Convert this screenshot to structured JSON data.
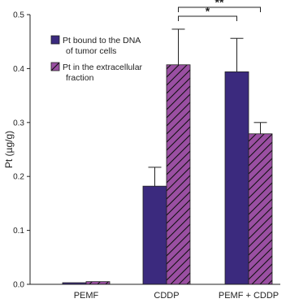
{
  "chart_data": {
    "type": "bar",
    "ylabel": "Pt (µg/g)",
    "ylim": [
      0,
      0.5
    ],
    "yticks": [
      "0.0",
      "0.1",
      "0.2",
      "0.3",
      "0.4",
      "0.5"
    ],
    "categories": [
      "PEMF",
      "CDDP",
      "PEMF + CDDP"
    ],
    "series": [
      {
        "name": "Pt bound to the DNA of tumor cells",
        "legend_lines": [
          "Pt bound to the DNA",
          "of tumor cells"
        ],
        "color": "#3b2a7e",
        "pattern": "solid",
        "values": [
          0.003,
          0.182,
          0.394
        ],
        "errors": [
          0,
          0.035,
          0.062
        ]
      },
      {
        "name": "Pt in the extracellular fraction",
        "legend_lines": [
          "Pt in the extracellular",
          "fraction"
        ],
        "color": "#9a4fa2",
        "pattern": "diagonal-hatch",
        "values": [
          0.005,
          0.407,
          0.279
        ],
        "errors": [
          0,
          0.066,
          0.021
        ]
      }
    ],
    "significance": [
      {
        "label": "*",
        "from_category": "CDDP",
        "to_category": "PEMF + CDDP",
        "left_series": 1,
        "right_series": 0
      },
      {
        "label": "**",
        "from_category": "CDDP",
        "to_category": "PEMF + CDDP",
        "left_series": 1,
        "right_series": 1
      }
    ],
    "legend_position": "top-left"
  }
}
